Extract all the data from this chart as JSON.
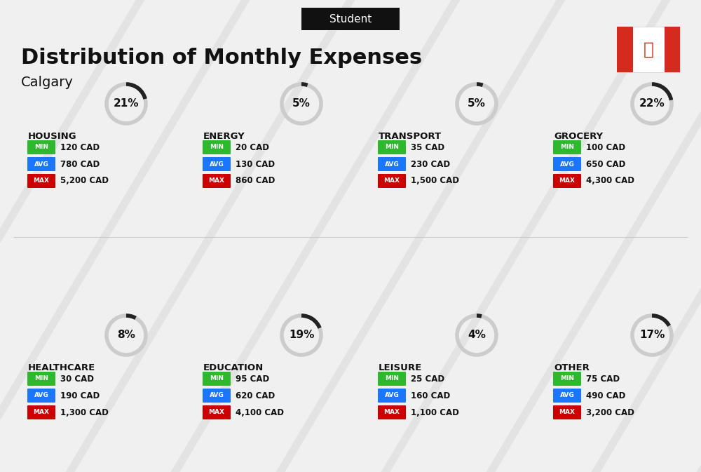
{
  "title": "Distribution of Monthly Expenses",
  "subtitle": "Student",
  "city": "Calgary",
  "background_color": "#f0f0f0",
  "categories": [
    {
      "name": "HOUSING",
      "pct": 21,
      "min": "120 CAD",
      "avg": "780 CAD",
      "max": "5,200 CAD",
      "row": 0,
      "col": 0
    },
    {
      "name": "ENERGY",
      "pct": 5,
      "min": "20 CAD",
      "avg": "130 CAD",
      "max": "860 CAD",
      "row": 0,
      "col": 1
    },
    {
      "name": "TRANSPORT",
      "pct": 5,
      "min": "35 CAD",
      "avg": "230 CAD",
      "max": "1,500 CAD",
      "row": 0,
      "col": 2
    },
    {
      "name": "GROCERY",
      "pct": 22,
      "min": "100 CAD",
      "avg": "650 CAD",
      "max": "4,300 CAD",
      "row": 0,
      "col": 3
    },
    {
      "name": "HEALTHCARE",
      "pct": 8,
      "min": "30 CAD",
      "avg": "190 CAD",
      "max": "1,300 CAD",
      "row": 1,
      "col": 0
    },
    {
      "name": "EDUCATION",
      "pct": 19,
      "min": "95 CAD",
      "avg": "620 CAD",
      "max": "4,100 CAD",
      "row": 1,
      "col": 1
    },
    {
      "name": "LEISURE",
      "pct": 4,
      "min": "25 CAD",
      "avg": "160 CAD",
      "max": "1,100 CAD",
      "row": 1,
      "col": 2
    },
    {
      "name": "OTHER",
      "pct": 17,
      "min": "75 CAD",
      "avg": "490 CAD",
      "max": "3,200 CAD",
      "row": 1,
      "col": 3
    }
  ],
  "min_color": "#2eb82e",
  "avg_color": "#1a75ff",
  "max_color": "#cc0000",
  "label_color": "#ffffff",
  "text_color": "#111111",
  "arc_color": "#222222",
  "arc_bg_color": "#cccccc"
}
